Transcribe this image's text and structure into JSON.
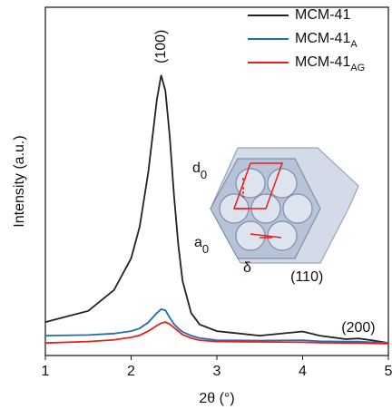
{
  "chart_data": {
    "type": "line",
    "x_label": "2θ (°)",
    "y_label": "Intensity (a.u.)",
    "x": [
      1,
      1.5,
      1.8,
      2.0,
      2.1,
      2.2,
      2.3,
      2.35,
      2.4,
      2.45,
      2.5,
      2.55,
      2.6,
      2.7,
      2.8,
      3.0,
      3.5,
      4.0,
      4.2,
      4.5,
      4.65,
      4.8,
      5.0
    ],
    "series": [
      {
        "name": "MCM-41",
        "color": "#222222",
        "values": [
          9.6,
          12.8,
          18.8,
          27.9,
          37,
          52.6,
          73.4,
          80.5,
          76,
          63,
          46,
          31.8,
          21.4,
          12.2,
          8.9,
          7,
          5.7,
          6.9,
          5.7,
          4.7,
          4.9,
          4.4,
          3.6
        ]
      },
      {
        "name": "MCM-41",
        "subscript": "A",
        "color": "#1f6fb0",
        "values": [
          5.7,
          5.9,
          6.3,
          7,
          7.8,
          9.5,
          12.2,
          13.3,
          13,
          10.9,
          9,
          7.8,
          6.8,
          5.7,
          5,
          4.4,
          4.3,
          4.4,
          4.1,
          4,
          4,
          3.8,
          3.6
        ]
      },
      {
        "name": "MCM-41",
        "subscript": "AG",
        "color": "#e8201c",
        "values": [
          3.6,
          4,
          4.5,
          5.2,
          5.8,
          7,
          8.6,
          9.3,
          9.6,
          9,
          8,
          7,
          6,
          5,
          4.4,
          4,
          3.9,
          3.8,
          3.7,
          3.6,
          3.6,
          3.5,
          3.4
        ]
      }
    ],
    "xlim": [
      1,
      5
    ],
    "xticks": [
      1,
      2,
      3,
      4,
      5
    ],
    "ylim": [
      0,
      100
    ],
    "legend": "upper right",
    "annotations": [
      {
        "text": "(100)",
        "x": 2.35
      },
      {
        "text": "(110)",
        "x": 4.05
      },
      {
        "text": "(200)",
        "x": 4.65
      }
    ],
    "inset_labels": [
      {
        "text": "d",
        "subscript": "0"
      },
      {
        "text": "a",
        "subscript": "0"
      },
      {
        "text": "δ"
      }
    ]
  }
}
